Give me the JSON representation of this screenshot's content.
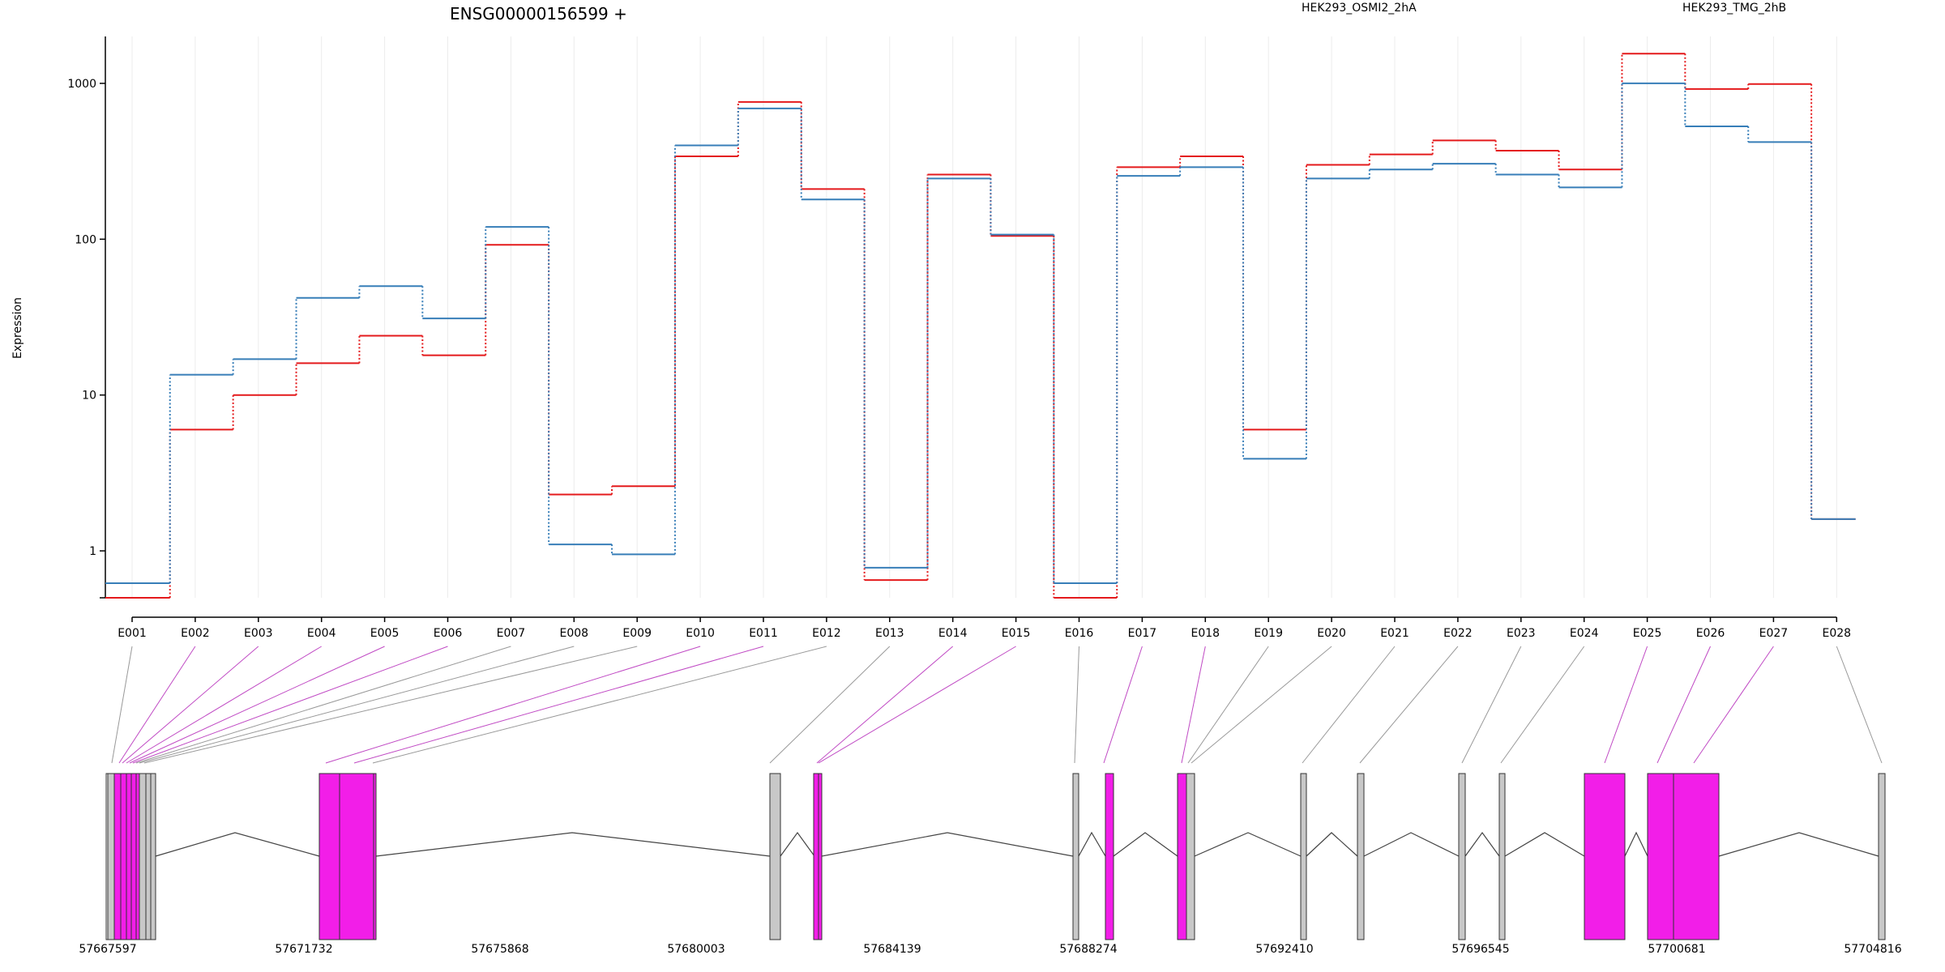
{
  "chart_data": {
    "type": "line",
    "title": "ENSG00000156599 +",
    "ylabel": "Expression",
    "yscale": "log",
    "ylim": [
      0.5,
      2000
    ],
    "yticks": [
      1,
      10,
      100,
      1000
    ],
    "ytick_labels": [
      "1",
      "10",
      "100",
      "1000"
    ],
    "categories": [
      "E001",
      "E002",
      "E003",
      "E004",
      "E005",
      "E006",
      "E007",
      "E008",
      "E009",
      "E010",
      "E011",
      "E012",
      "E013",
      "E014",
      "E015",
      "E016",
      "E017",
      "E018",
      "E019",
      "E020",
      "E021",
      "E022",
      "E023",
      "E024",
      "E025",
      "E026",
      "E027",
      "E028"
    ],
    "series": [
      {
        "name": "HEK293_OSMI2_2hA",
        "color": "#e41a1c",
        "values": [
          0.5,
          6.0,
          10.0,
          16.0,
          24.0,
          18.0,
          92.0,
          2.3,
          2.6,
          340,
          760,
          210,
          0.65,
          260,
          105,
          0.5,
          290,
          340,
          6.0,
          300,
          350,
          430,
          370,
          280,
          1550,
          920,
          990,
          1.6
        ]
      },
      {
        "name": "HEK293_TMG_2hB",
        "color": "#377eb8",
        "values": [
          0.62,
          13.5,
          17.0,
          42.0,
          50.0,
          31.0,
          120.0,
          1.1,
          0.95,
          400,
          690,
          180,
          0.78,
          245,
          107,
          0.62,
          255,
          290,
          3.9,
          245,
          280,
          305,
          260,
          215,
          1000,
          530,
          420,
          1.6
        ]
      }
    ],
    "grid": "vertical"
  },
  "gene_model": {
    "coordinate_labels": [
      "57667597",
      "57671732",
      "57675868",
      "57680003",
      "57684139",
      "57688274",
      "57692410",
      "57696545",
      "57700681",
      "57704816"
    ],
    "exon_fill_highlight": "#f21ee8",
    "exon_fill_normal": "#c8c8c8",
    "highlighted_exons": [
      "E002",
      "E003",
      "E004",
      "E005",
      "E006",
      "E010",
      "E011",
      "E014",
      "E015",
      "E017",
      "E018",
      "E025",
      "E026",
      "E027"
    ]
  }
}
